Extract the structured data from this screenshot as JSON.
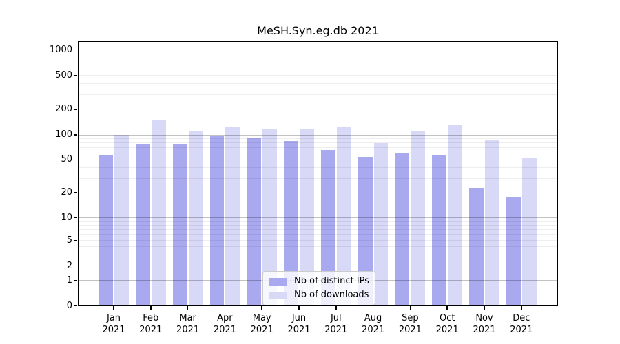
{
  "chart_data": {
    "type": "bar",
    "title": "MeSH.Syn.eg.db 2021",
    "categories": [
      {
        "month": "Jan",
        "year": "2021"
      },
      {
        "month": "Feb",
        "year": "2021"
      },
      {
        "month": "Mar",
        "year": "2021"
      },
      {
        "month": "Apr",
        "year": "2021"
      },
      {
        "month": "May",
        "year": "2021"
      },
      {
        "month": "Jun",
        "year": "2021"
      },
      {
        "month": "Jul",
        "year": "2021"
      },
      {
        "month": "Aug",
        "year": "2021"
      },
      {
        "month": "Sep",
        "year": "2021"
      },
      {
        "month": "Oct",
        "year": "2021"
      },
      {
        "month": "Nov",
        "year": "2021"
      },
      {
        "month": "Dec",
        "year": "2021"
      }
    ],
    "series": [
      {
        "name": "Nb of distinct IPs",
        "color": "#a9a9f0",
        "values": [
          58,
          78,
          77,
          98,
          93,
          85,
          66,
          54,
          60,
          58,
          23,
          18
        ]
      },
      {
        "name": "Nb of downloads",
        "color": "#d8d8f7",
        "values": [
          100,
          152,
          111,
          125,
          118,
          119,
          122,
          79,
          110,
          131,
          88,
          52
        ]
      }
    ],
    "yticks": [
      1000,
      500,
      200,
      100,
      50,
      20,
      10,
      5,
      2,
      1,
      0
    ],
    "yscale": "symlog",
    "ylim": [
      0,
      1300
    ],
    "xlabel": "",
    "ylabel": "",
    "grid": "on",
    "legend_position": "lower center",
    "colors": {
      "axis_spine": "#000000",
      "grid_major": "#c2c2c2",
      "grid_minor": "#ededed",
      "legend_border": "#cccccc",
      "background": "#ffffff"
    }
  }
}
